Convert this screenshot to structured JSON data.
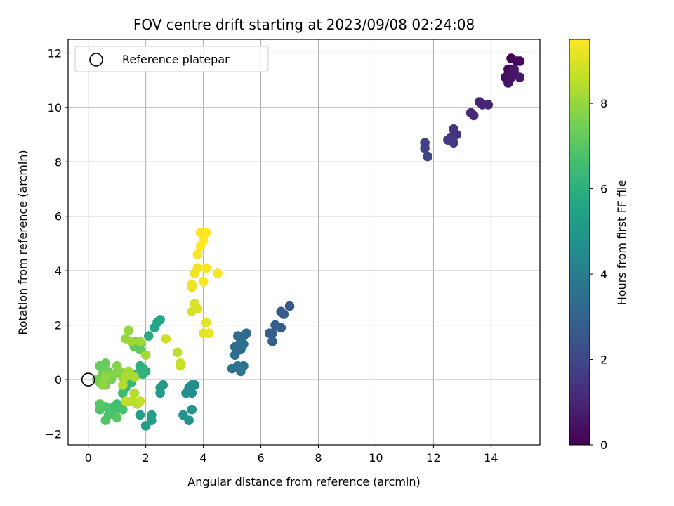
{
  "chart_data": {
    "type": "scatter",
    "title": "FOV centre drift starting at 2023/09/08 02:24:08",
    "xlabel": "Angular distance from reference (arcmin)",
    "ylabel": "Rotation from reference (arcmin)",
    "xlim": [
      -0.7,
      15.7
    ],
    "ylim": [
      -2.4,
      12.5
    ],
    "xticks": [
      "0",
      "2",
      "4",
      "6",
      "8",
      "10",
      "12",
      "14"
    ],
    "xtick_values": [
      0,
      2,
      4,
      6,
      8,
      10,
      12,
      14
    ],
    "yticks": [
      "−2",
      "0",
      "2",
      "4",
      "6",
      "8",
      "10",
      "12"
    ],
    "ytick_values": [
      -2,
      0,
      2,
      4,
      6,
      8,
      10,
      12
    ],
    "grid": true,
    "legend": {
      "label": "Reference platepar",
      "placement": "top-left"
    },
    "reference_point": {
      "x": 0,
      "y": 0
    },
    "colormap": "viridis",
    "colorbar": {
      "label": "Hours from first FF file",
      "range": [
        0,
        9.5
      ],
      "ticks": [
        "0",
        "2",
        "4",
        "6",
        "8"
      ],
      "tick_values": [
        0,
        2,
        4,
        6,
        8
      ]
    },
    "points": [
      [
        14.7,
        11.8,
        0.0
      ],
      [
        14.9,
        11.7,
        0.1
      ],
      [
        15.0,
        11.7,
        0.2
      ],
      [
        14.6,
        11.4,
        0.2
      ],
      [
        14.8,
        11.3,
        0.3
      ],
      [
        14.7,
        11.4,
        0.3
      ],
      [
        14.5,
        11.1,
        0.4
      ],
      [
        14.6,
        11.2,
        0.4
      ],
      [
        14.7,
        11.1,
        0.5
      ],
      [
        14.6,
        10.9,
        0.5
      ],
      [
        15.0,
        11.1,
        0.6
      ],
      [
        14.8,
        11.4,
        0.6
      ],
      [
        13.6,
        10.2,
        0.9
      ],
      [
        13.7,
        10.1,
        1.0
      ],
      [
        13.9,
        10.1,
        1.0
      ],
      [
        13.3,
        9.8,
        1.1
      ],
      [
        13.4,
        9.7,
        1.1
      ],
      [
        12.7,
        9.2,
        1.4
      ],
      [
        12.8,
        9.0,
        1.4
      ],
      [
        12.6,
        8.9,
        1.5
      ],
      [
        12.6,
        8.8,
        1.5
      ],
      [
        12.7,
        8.7,
        1.6
      ],
      [
        12.5,
        8.8,
        1.6
      ],
      [
        11.7,
        8.7,
        1.8
      ],
      [
        11.7,
        8.5,
        1.8
      ],
      [
        11.8,
        8.2,
        1.9
      ],
      [
        7.0,
        2.7,
        2.6
      ],
      [
        6.7,
        2.5,
        2.6
      ],
      [
        6.8,
        2.4,
        2.7
      ],
      [
        6.7,
        1.9,
        2.7
      ],
      [
        6.5,
        2.0,
        2.8
      ],
      [
        6.4,
        1.7,
        2.8
      ],
      [
        6.3,
        1.7,
        2.9
      ],
      [
        6.4,
        1.4,
        2.9
      ],
      [
        5.5,
        1.7,
        3.2
      ],
      [
        5.4,
        1.6,
        3.2
      ],
      [
        5.2,
        1.6,
        3.3
      ],
      [
        5.3,
        1.4,
        3.3
      ],
      [
        5.1,
        1.2,
        3.4
      ],
      [
        5.3,
        1.1,
        3.4
      ],
      [
        5.4,
        1.3,
        3.5
      ],
      [
        5.1,
        0.9,
        3.5
      ],
      [
        5.0,
        0.4,
        3.6
      ],
      [
        5.2,
        0.5,
        3.6
      ],
      [
        5.3,
        0.3,
        3.7
      ],
      [
        5.4,
        0.5,
        3.7
      ],
      [
        3.7,
        -0.2,
        4.5
      ],
      [
        3.5,
        -0.3,
        4.6
      ],
      [
        3.6,
        -0.5,
        4.6
      ],
      [
        3.4,
        -0.5,
        4.7
      ],
      [
        3.6,
        -0.2,
        4.7
      ],
      [
        3.6,
        -1.1,
        4.8
      ],
      [
        3.5,
        -1.5,
        4.8
      ],
      [
        3.3,
        -1.3,
        4.9
      ],
      [
        2.6,
        -0.2,
        5.1
      ],
      [
        2.5,
        -0.3,
        5.2
      ],
      [
        2.5,
        -0.5,
        5.2
      ],
      [
        2.2,
        -1.5,
        5.3
      ],
      [
        2.0,
        -1.7,
        5.3
      ],
      [
        1.8,
        -1.3,
        5.4
      ],
      [
        2.2,
        -1.3,
        5.4
      ],
      [
        2.5,
        2.2,
        5.6
      ],
      [
        2.4,
        2.1,
        5.7
      ],
      [
        2.3,
        1.9,
        5.7
      ],
      [
        2.1,
        1.6,
        5.8
      ],
      [
        1.9,
        0.4,
        6.0
      ],
      [
        1.8,
        0.5,
        6.0
      ],
      [
        2.0,
        0.3,
        6.1
      ],
      [
        1.7,
        0.2,
        6.1
      ],
      [
        1.6,
        0.1,
        6.2
      ],
      [
        1.9,
        0.2,
        6.2
      ],
      [
        1.5,
        -0.1,
        6.3
      ],
      [
        1.3,
        -0.3,
        6.3
      ],
      [
        1.2,
        -0.5,
        6.4
      ],
      [
        1.0,
        -0.9,
        6.5
      ],
      [
        0.9,
        -1.0,
        6.6
      ],
      [
        1.1,
        -1.0,
        6.6
      ],
      [
        1.2,
        -1.1,
        6.7
      ],
      [
        0.9,
        -1.2,
        6.7
      ],
      [
        0.6,
        -1.0,
        6.8
      ],
      [
        0.7,
        -1.3,
        6.8
      ],
      [
        0.6,
        -1.5,
        6.9
      ],
      [
        0.4,
        -1.1,
        6.9
      ],
      [
        0.4,
        -0.9,
        7.0
      ],
      [
        1.0,
        -1.4,
        7.0
      ],
      [
        1.8,
        1.3,
        7.1
      ],
      [
        1.6,
        1.4,
        7.1
      ],
      [
        1.8,
        1.1,
        7.2
      ],
      [
        1.6,
        1.2,
        7.2
      ],
      [
        0.4,
        0.5,
        7.2
      ],
      [
        0.5,
        0.4,
        7.3
      ],
      [
        0.6,
        0.6,
        7.3
      ],
      [
        0.7,
        0.3,
        7.4
      ],
      [
        0.5,
        0.2,
        7.4
      ],
      [
        0.3,
        0.0,
        7.5
      ],
      [
        0.4,
        -0.1,
        7.5
      ],
      [
        0.6,
        -0.2,
        7.6
      ],
      [
        0.8,
        0.0,
        7.6
      ],
      [
        0.9,
        0.2,
        7.7
      ],
      [
        1.0,
        0.5,
        7.7
      ],
      [
        1.1,
        0.3,
        7.8
      ],
      [
        1.2,
        0.1,
        7.8
      ],
      [
        0.6,
        0.1,
        7.9
      ],
      [
        0.5,
        -0.2,
        7.9
      ],
      [
        1.4,
        1.8,
        8.0
      ],
      [
        1.3,
        1.5,
        8.0
      ],
      [
        1.5,
        1.4,
        8.1
      ],
      [
        1.8,
        1.4,
        8.1
      ],
      [
        2.0,
        0.9,
        8.2
      ],
      [
        1.4,
        0.3,
        8.2
      ],
      [
        1.6,
        0.1,
        8.3
      ],
      [
        1.3,
        0.1,
        8.3
      ],
      [
        1.2,
        -0.2,
        8.4
      ],
      [
        1.6,
        -0.5,
        8.4
      ],
      [
        1.5,
        -0.8,
        8.5
      ],
      [
        1.7,
        -0.9,
        8.5
      ],
      [
        1.8,
        -0.8,
        8.6
      ],
      [
        1.3,
        -0.8,
        8.6
      ],
      [
        3.1,
        1.0,
        8.6
      ],
      [
        3.2,
        0.6,
        8.7
      ],
      [
        3.2,
        0.5,
        8.7
      ],
      [
        2.7,
        1.5,
        8.8
      ],
      [
        3.6,
        2.5,
        8.9
      ],
      [
        3.7,
        2.8,
        9.0
      ],
      [
        3.8,
        2.6,
        9.0
      ],
      [
        4.1,
        2.1,
        9.1
      ],
      [
        4.0,
        1.7,
        9.1
      ],
      [
        4.2,
        1.7,
        9.2
      ],
      [
        3.6,
        3.4,
        9.2
      ],
      [
        3.6,
        3.5,
        9.3
      ],
      [
        3.7,
        3.9,
        9.3
      ],
      [
        3.8,
        4.1,
        9.3
      ],
      [
        4.1,
        4.1,
        9.4
      ],
      [
        4.5,
        3.9,
        9.4
      ],
      [
        4.0,
        3.6,
        9.4
      ],
      [
        3.8,
        4.6,
        9.4
      ],
      [
        3.9,
        4.9,
        9.5
      ],
      [
        4.0,
        5.1,
        9.5
      ],
      [
        3.9,
        5.4,
        9.5
      ],
      [
        4.1,
        5.4,
        9.5
      ]
    ]
  }
}
